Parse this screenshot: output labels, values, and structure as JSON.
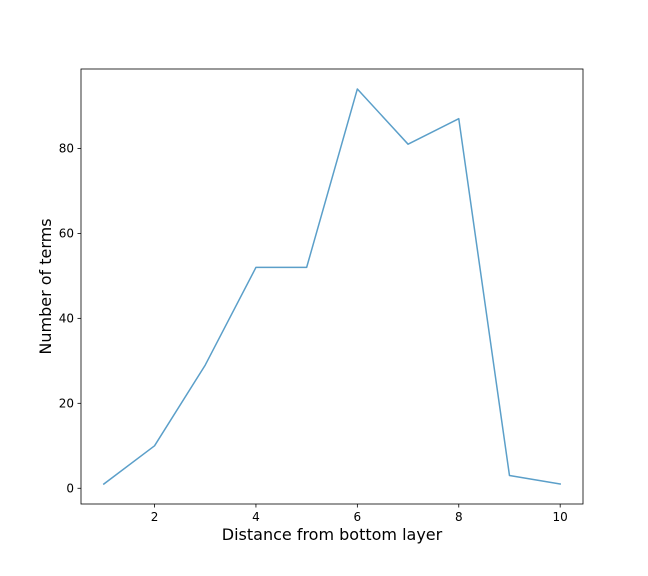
{
  "chart_data": {
    "type": "line",
    "title": "",
    "xlabel": "Distance from bottom layer",
    "ylabel": "Number of terms",
    "x": [
      1,
      2,
      3,
      4,
      5,
      6,
      7,
      8,
      9,
      10
    ],
    "series": [
      {
        "values": [
          1,
          10,
          29,
          52,
          52,
          94,
          81,
          87,
          3,
          1
        ],
        "color": "#5b9fc9"
      }
    ],
    "xlim": [
      0.55,
      10.45
    ],
    "ylim": [
      -3.7,
      98.7
    ],
    "xticks": [
      2,
      4,
      6,
      8,
      10
    ],
    "yticks": [
      0,
      20,
      40,
      60,
      80
    ],
    "grid": false,
    "legend": "none"
  }
}
